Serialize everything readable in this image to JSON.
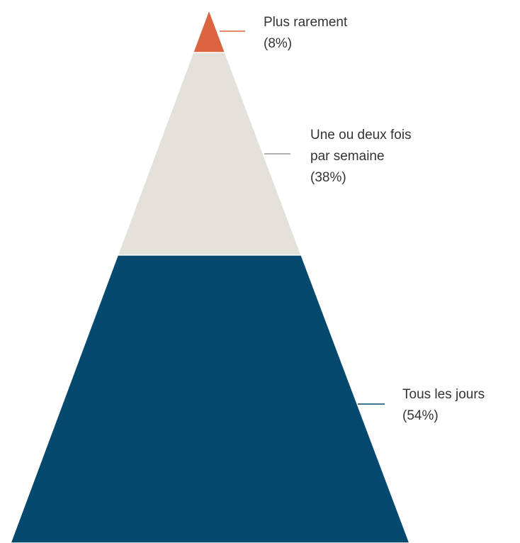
{
  "chart_data": {
    "type": "pyramid",
    "title": "",
    "order": "top-to-bottom",
    "series": [
      {
        "category": "Plus rarement",
        "label_lines": [
          "Plus rarement",
          "(8%)"
        ],
        "value": 8,
        "color": "#d9643f"
      },
      {
        "category": "Une ou deux fois par semaine",
        "label_lines": [
          "Une ou deux fois",
          "par semaine",
          "(38%)"
        ],
        "value": 38,
        "color": "#e4e1da"
      },
      {
        "category": "Tous les jours",
        "label_lines": [
          "Tous les jours",
          "(54%)"
        ],
        "value": 54,
        "color": "#06496e"
      }
    ],
    "legend": "none",
    "grid": false
  }
}
